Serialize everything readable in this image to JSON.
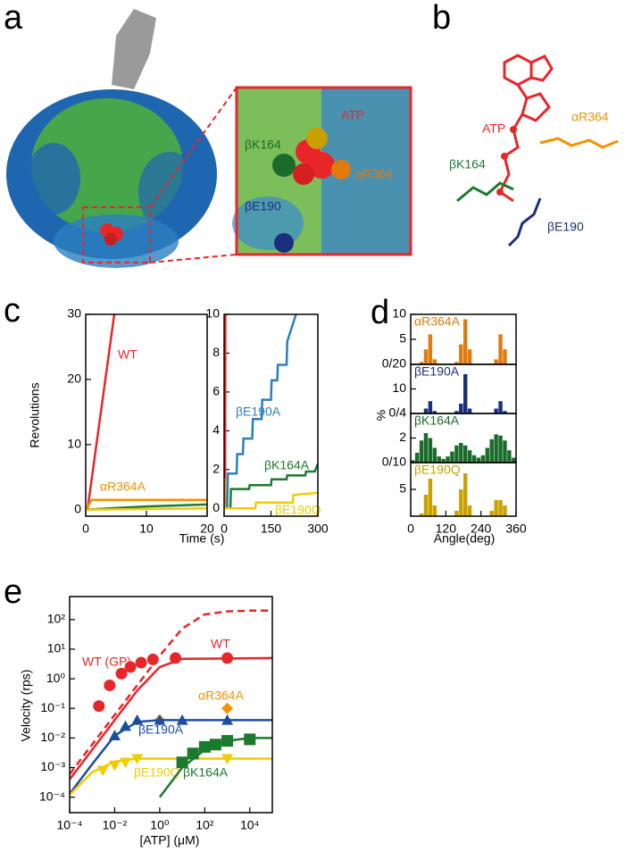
{
  "panel_labels": [
    "a",
    "b",
    "c",
    "d",
    "e"
  ],
  "structure": {
    "zoom_labels": [
      "ATP",
      "βK164",
      "αR364",
      "βE190"
    ],
    "molecule_labels": [
      "ATP",
      "αR364",
      "βK164",
      "βE190"
    ]
  },
  "chart_data": [
    {
      "type": "line",
      "ylabel": "Revolutions",
      "xlim": [
        0,
        20
      ],
      "xticks": [
        0,
        10,
        20
      ],
      "ylim": [
        -1,
        30
      ],
      "yticks": [
        0,
        10,
        20,
        30
      ],
      "series": [
        {
          "name": "WT",
          "color": "#e8262a",
          "x": [
            0,
            0.3,
            4.7
          ],
          "values": [
            0,
            0,
            30
          ]
        },
        {
          "name": "αR364A",
          "color": "#f39200",
          "x": [
            0,
            1,
            20
          ],
          "values": [
            0,
            1.5,
            1.5
          ]
        },
        {
          "color": "#1b7a2e",
          "x": [
            0,
            10,
            20
          ],
          "values": [
            0,
            0.5,
            0.8
          ]
        },
        {
          "color": "#f2cc00",
          "x": [
            0,
            20
          ],
          "values": [
            0,
            0.2
          ]
        }
      ]
    },
    {
      "type": "line",
      "xlabel": "Time (s)",
      "xlim": [
        0,
        300
      ],
      "xticks": [
        0,
        150,
        300
      ],
      "ylim": [
        -0.4,
        10
      ],
      "yticks": [
        0,
        2,
        4,
        6,
        8,
        10
      ],
      "series": [
        {
          "color": "#e8262a",
          "x": [
            0,
            3,
            4
          ],
          "values": [
            0,
            0,
            10
          ]
        },
        {
          "color": "#f39200",
          "x": [
            0,
            3,
            4,
            15
          ],
          "values": [
            0,
            0,
            1.5,
            1.5
          ]
        },
        {
          "name": "βE190A",
          "color": "#2a7fc1",
          "x": [
            0,
            10,
            12,
            40,
            42,
            60,
            62,
            90,
            92,
            120,
            122,
            150,
            152,
            170,
            172,
            200,
            202,
            230
          ],
          "values": [
            0,
            0,
            1.8,
            1.8,
            2.8,
            2.8,
            3.6,
            3.6,
            4.6,
            4.6,
            5.6,
            5.6,
            6.6,
            6.6,
            7.4,
            7.4,
            8.6,
            10
          ]
        },
        {
          "name": "βK164A",
          "color": "#1b7a2e",
          "x": [
            0,
            20,
            22,
            80,
            82,
            150,
            152,
            200,
            202,
            260,
            262,
            290,
            300
          ],
          "values": [
            0,
            0,
            1,
            1,
            1.2,
            1.2,
            1.5,
            1.5,
            1.7,
            1.7,
            1.9,
            1.9,
            2.3
          ]
        },
        {
          "name": "βE190Q",
          "color": "#f2cc00",
          "x": [
            0,
            100,
            102,
            220,
            222,
            300
          ],
          "values": [
            0,
            0,
            0.3,
            0.3,
            0.7,
            0.8
          ]
        }
      ]
    },
    {
      "type": "histogram",
      "name": "αR364A",
      "color": "#e07b10",
      "ylabel": "%",
      "xlim": [
        0,
        360
      ],
      "ylim": [
        0,
        10
      ],
      "yticks": [
        {
          "value": 0,
          "label": "0/20"
        },
        5,
        10
      ],
      "bins": [
        0,
        15,
        30,
        45,
        60,
        75,
        90,
        105,
        120,
        135,
        150,
        165,
        180,
        195,
        210,
        225,
        240,
        255,
        270,
        285,
        300,
        315,
        330,
        345,
        360
      ],
      "counts": [
        0,
        0,
        0.5,
        3,
        6,
        1,
        0,
        0,
        0,
        0,
        0.5,
        4,
        9,
        3,
        0,
        0,
        0,
        0,
        0,
        1,
        6,
        3,
        0,
        0
      ]
    },
    {
      "type": "histogram",
      "name": "βE190A",
      "color": "#1a2f7e",
      "xlim": [
        0,
        360
      ],
      "ylim": [
        0,
        20
      ],
      "yticks": [
        {
          "value": 0,
          "label": "0/4"
        },
        10
      ],
      "bins": [
        0,
        15,
        30,
        45,
        60,
        75,
        90,
        105,
        120,
        135,
        150,
        165,
        180,
        195,
        210,
        225,
        240,
        255,
        270,
        285,
        300,
        315,
        330,
        345,
        360
      ],
      "counts": [
        0,
        0,
        0,
        2,
        5,
        1,
        0,
        0,
        0,
        0,
        1,
        4,
        16,
        2,
        0,
        0,
        0,
        0,
        0,
        2,
        5,
        1,
        0,
        0
      ]
    },
    {
      "type": "histogram",
      "name": "βK164A",
      "color": "#1b6b2a",
      "xlim": [
        0,
        360
      ],
      "ylim": [
        0,
        4
      ],
      "yticks": [
        {
          "value": 0,
          "label": "0/10"
        },
        2
      ],
      "bins": [
        0,
        15,
        30,
        45,
        60,
        75,
        90,
        105,
        120,
        135,
        150,
        165,
        180,
        195,
        210,
        225,
        240,
        255,
        270,
        285,
        300,
        315,
        330,
        345,
        360
      ],
      "counts": [
        0.2,
        0.8,
        1.8,
        2.4,
        2.0,
        1.2,
        0.5,
        0.3,
        0.5,
        0.9,
        1.4,
        1.6,
        1.4,
        1.0,
        0.6,
        0.4,
        0.6,
        1.2,
        1.9,
        2.3,
        2.2,
        1.8,
        1.0,
        0.4
      ]
    },
    {
      "type": "histogram",
      "name": "βE190Q",
      "color": "#c9a200",
      "xlabel": "Angle(deg)",
      "xlim": [
        0,
        360
      ],
      "xticks": [
        0,
        120,
        240,
        360
      ],
      "ylim": [
        0,
        10
      ],
      "yticks": [
        5
      ],
      "bins": [
        0,
        15,
        30,
        45,
        60,
        75,
        90,
        105,
        120,
        135,
        150,
        165,
        180,
        195,
        210,
        225,
        240,
        255,
        270,
        285,
        300,
        315,
        330,
        345,
        360
      ],
      "counts": [
        0,
        0,
        0.5,
        4,
        7,
        2,
        0,
        0,
        0,
        0,
        1,
        5,
        8,
        2,
        0,
        0,
        0,
        0,
        1,
        3,
        3,
        2,
        0,
        0
      ]
    },
    {
      "type": "scatter",
      "log_x": true,
      "log_y": true,
      "xlabel": "[ATP] (μM)",
      "ylabel": "Velocity (rps)",
      "xlim": [
        0.0001,
        100000
      ],
      "ylim": [
        3e-05,
        600
      ],
      "xticks": [
        {
          "value": 0.0001,
          "label": "10⁻⁴"
        },
        {
          "value": 0.01,
          "label": "10⁻²"
        },
        {
          "value": 1,
          "label": "10⁰"
        },
        {
          "value": 100,
          "label": "10²"
        },
        {
          "value": 10000,
          "label": "10⁴"
        }
      ],
      "yticks": [
        {
          "value": 0.0001,
          "label": "10⁻⁴"
        },
        {
          "value": 0.001,
          "label": "10⁻³"
        },
        {
          "value": 0.01,
          "label": "10⁻²"
        },
        {
          "value": 0.1,
          "label": "10⁻¹"
        },
        {
          "value": 1,
          "label": "10⁰"
        },
        {
          "value": 10,
          "label": "10¹"
        },
        {
          "value": 100,
          "label": "10²"
        }
      ],
      "series": [
        {
          "name": "WT (GP)",
          "color": "#e8262a",
          "dashed": true,
          "fit": {
            "x": [
              0.0001,
              0.001,
              0.01,
              0.1,
              1,
              10,
              100,
              1000,
              10000,
              100000
            ],
            "values": [
              0.0006,
              0.006,
              0.06,
              0.6,
              6,
              50,
              150,
              190,
              200,
              200
            ]
          }
        },
        {
          "name": "WT",
          "color": "#e8262a",
          "marker": "circle",
          "x": [
            0.002,
            0.006,
            0.02,
            0.05,
            0.15,
            0.5,
            5,
            1000
          ],
          "values": [
            0.12,
            0.6,
            1.5,
            2.5,
            3.5,
            4.5,
            5,
            5
          ],
          "fit": {
            "x": [
              0.0001,
              0.001,
              0.01,
              0.1,
              1,
              10,
              100000
            ],
            "values": [
              0.0004,
              0.004,
              0.04,
              0.4,
              2.5,
              4.7,
              5
            ]
          }
        },
        {
          "name": "αR364A",
          "color": "#f39200",
          "marker": "diamond",
          "x": [
            1,
            1000
          ],
          "values": [
            0.04,
            0.1
          ]
        },
        {
          "name": "βE190A",
          "color": "#1a4fa0",
          "marker": "triangle",
          "x": [
            0.01,
            0.03,
            0.1,
            1,
            10,
            1000
          ],
          "values": [
            0.012,
            0.025,
            0.04,
            0.04,
            0.04,
            0.04
          ],
          "fit": {
            "x": [
              0.0001,
              0.001,
              0.01,
              0.1,
              1,
              100000
            ],
            "values": [
              0.00013,
              0.0013,
              0.012,
              0.035,
              0.04,
              0.04
            ]
          }
        },
        {
          "name": "βE190Q",
          "color": "#f2cc00",
          "marker": "invtriangle",
          "x": [
            0.003,
            0.01,
            0.03,
            0.1,
            1000
          ],
          "values": [
            0.0008,
            0.0012,
            0.0015,
            0.002,
            0.002
          ],
          "fit": {
            "x": [
              0.0001,
              0.001,
              0.01,
              0.1,
              100000
            ],
            "values": [
              0.00012,
              0.0007,
              0.0016,
              0.002,
              0.002
            ]
          }
        },
        {
          "name": "βK164A",
          "color": "#1b7a2e",
          "marker": "square",
          "x": [
            10,
            30,
            100,
            300,
            1000,
            10000
          ],
          "values": [
            0.0015,
            0.003,
            0.005,
            0.006,
            0.008,
            0.009
          ],
          "fit": {
            "x": [
              1,
              10,
              100,
              1000,
              10000,
              100000
            ],
            "values": [
              0.0001,
              0.001,
              0.004,
              0.008,
              0.01,
              0.01
            ]
          }
        }
      ]
    }
  ]
}
